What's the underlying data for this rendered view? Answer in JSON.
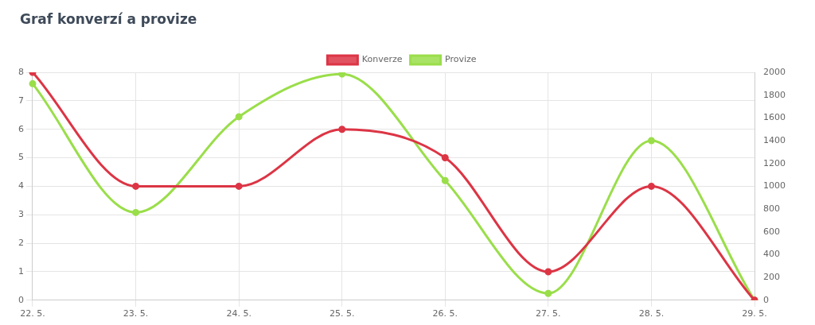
{
  "chart_data": {
    "type": "line",
    "title": "Graf konverzí a provize",
    "categories": [
      "22. 5.",
      "23. 5.",
      "24. 5.",
      "25. 5.",
      "26. 5.",
      "27. 5.",
      "28. 5.",
      "29. 5."
    ],
    "series": [
      {
        "name": "Konverze",
        "color": "#dc3545",
        "values": [
          8,
          4,
          4,
          6,
          5,
          1,
          4,
          0
        ]
      },
      {
        "name": "Provize",
        "color": "#9ade4a",
        "axis": "y2",
        "values": [
          1900,
          770,
          1610,
          1985,
          1050,
          60,
          1400,
          0
        ]
      }
    ],
    "ylim": [
      0,
      8
    ],
    "yticks": [
      0,
      1,
      2,
      3,
      4,
      5,
      6,
      7,
      8
    ],
    "y2lim": [
      0,
      2000
    ],
    "y2ticks": [
      0,
      200,
      400,
      600,
      800,
      1000,
      1200,
      1400,
      1600,
      1800,
      2000
    ],
    "grid": true,
    "legend": "top",
    "marker": "circle",
    "line_style": "solid"
  }
}
